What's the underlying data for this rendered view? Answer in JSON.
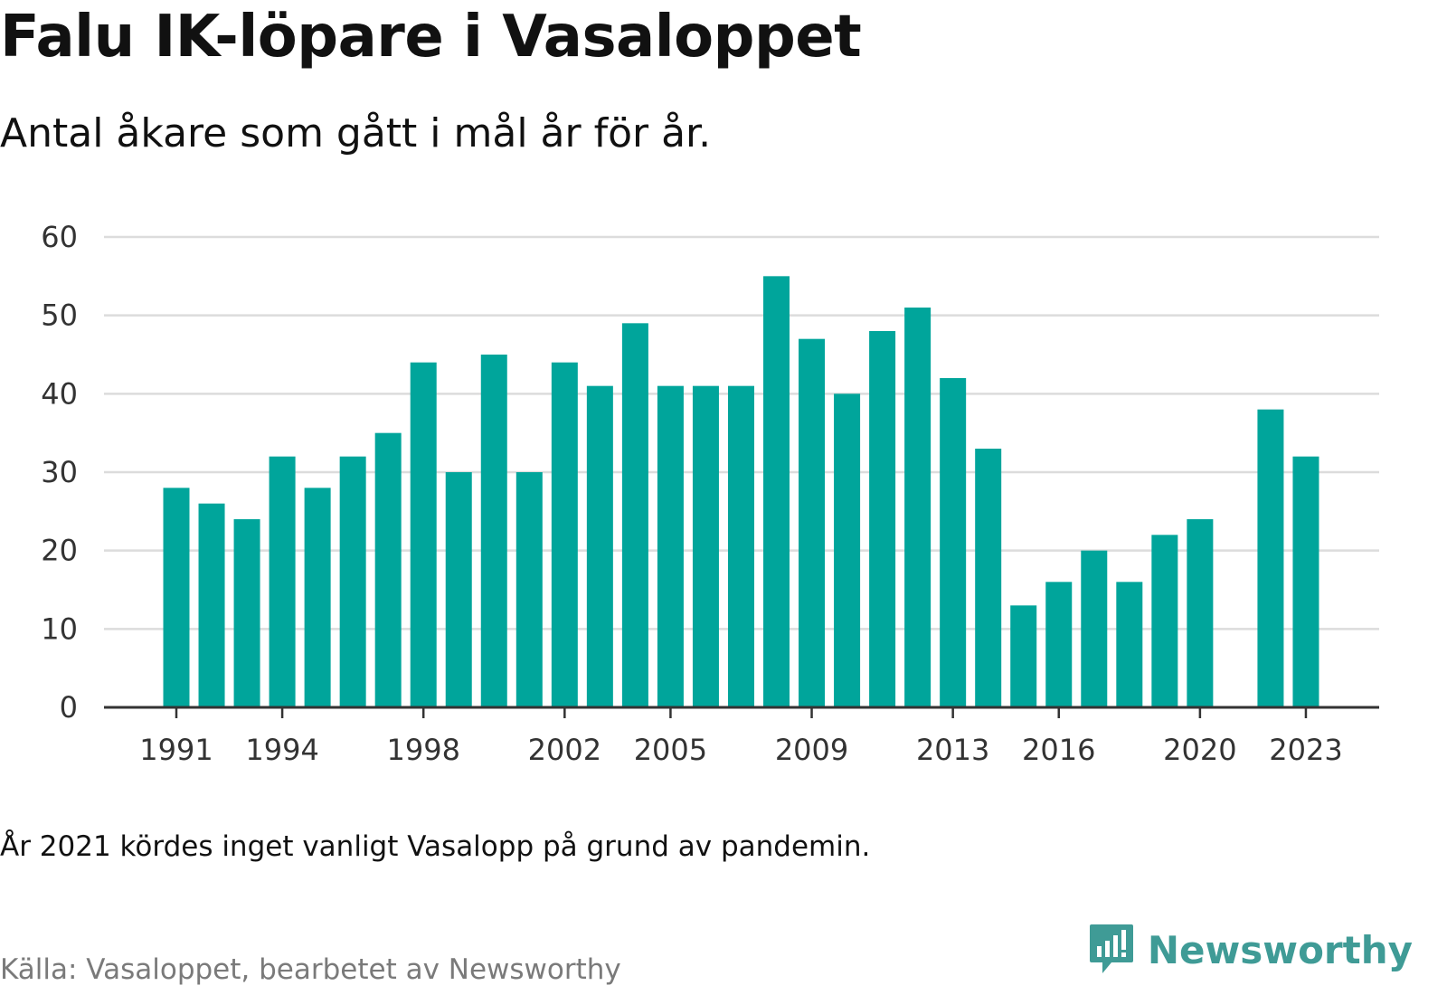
{
  "title": "Falu IK-löpare i Vasaloppet",
  "subtitle": "Antal åkare som gått i mål år för år.",
  "note": "År 2021 kördes inget vanligt Vasalopp på grund av pandemin.",
  "source": "Källa: Vasaloppet, bearbetet av Newsworthy",
  "brand": {
    "name": "Newsworthy",
    "icon": "newsworthy-logo-icon",
    "color": "#3f9b96"
  },
  "chart_data": {
    "type": "bar",
    "title": "",
    "xlabel": "",
    "ylabel": "",
    "ylim": [
      0,
      60
    ],
    "yticks": [
      0,
      10,
      20,
      30,
      40,
      50,
      60
    ],
    "xtick_labels": [
      "1991",
      "1994",
      "1998",
      "2002",
      "2005",
      "2009",
      "2013",
      "2016",
      "2020",
      "2023"
    ],
    "grid": true,
    "bar_color": "#00a59b",
    "categories": [
      "1991",
      "1992",
      "1993",
      "1994",
      "1995",
      "1996",
      "1997",
      "1998",
      "1999",
      "2000",
      "2001",
      "2002",
      "2003",
      "2004",
      "2005",
      "2006",
      "2007",
      "2008",
      "2009",
      "2010",
      "2011",
      "2012",
      "2013",
      "2014",
      "2015",
      "2016",
      "2017",
      "2018",
      "2019",
      "2020",
      "2021",
      "2022",
      "2023"
    ],
    "values": [
      28,
      26,
      24,
      32,
      28,
      32,
      35,
      44,
      30,
      45,
      30,
      44,
      41,
      49,
      41,
      41,
      41,
      55,
      47,
      40,
      48,
      51,
      42,
      33,
      13,
      16,
      20,
      16,
      22,
      24,
      null,
      38,
      32
    ]
  }
}
